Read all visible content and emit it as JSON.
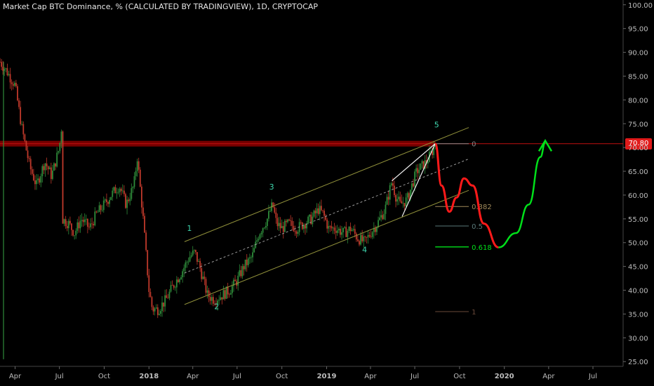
{
  "title": "Market Cap BTC Dominance, % (CALCULATED BY TRADINGVIEW), 1D, CRYPTOCAP",
  "current_value_label": "70.80",
  "colors": {
    "background": "#000000",
    "candle_up": "#2e8b3a",
    "candle_down": "#c0392b",
    "resistance_zone": "#8b0000",
    "channel": "#8f8f3a",
    "projection_down": "#ff1a1a",
    "projection_up": "#00e01a",
    "wave_label": "#3fd9b0",
    "fib_0382": "#a08a5a",
    "fib_05": "#5a7a7a",
    "fib_0618": "#00e01a",
    "fib_1": "#6a4a3a"
  },
  "chart_data": {
    "type": "line",
    "title": "Market Cap BTC Dominance, % (CALCULATED BY TRADINGVIEW), 1D, CRYPTOCAP",
    "xlabel": "",
    "ylabel": "",
    "ylim": [
      24,
      101
    ],
    "x_ticks": [
      "Apr",
      "Jul",
      "Oct",
      "2018",
      "Apr",
      "Jul",
      "Oct",
      "2019",
      "Apr",
      "Jul",
      "Oct",
      "2020",
      "Apr",
      "Jul"
    ],
    "y_ticks": [
      "100.00",
      "95.00",
      "90.00",
      "85.00",
      "80.00",
      "75.00",
      "70.00",
      "65.00",
      "60.00",
      "55.00",
      "50.00",
      "45.00",
      "40.00",
      "35.00",
      "30.00",
      "25.00"
    ],
    "x_range": [
      "2017-03-01",
      "2020-09-01"
    ],
    "series": [
      {
        "values": [
          {
            "x": "2017-03-01",
            "y": 88
          },
          {
            "x": "2017-03-15",
            "y": 86
          },
          {
            "x": "2017-04-01",
            "y": 83
          },
          {
            "x": "2017-04-15",
            "y": 74
          },
          {
            "x": "2017-05-01",
            "y": 66
          },
          {
            "x": "2017-05-15",
            "y": 62
          },
          {
            "x": "2017-06-01",
            "y": 67
          },
          {
            "x": "2017-06-15",
            "y": 64
          },
          {
            "x": "2017-07-01",
            "y": 70
          },
          {
            "x": "2017-07-05",
            "y": 74
          },
          {
            "x": "2017-07-06",
            "y": 55
          },
          {
            "x": "2017-07-20",
            "y": 54
          },
          {
            "x": "2017-08-01",
            "y": 52
          },
          {
            "x": "2017-08-15",
            "y": 55
          },
          {
            "x": "2017-09-01",
            "y": 53
          },
          {
            "x": "2017-09-15",
            "y": 56
          },
          {
            "x": "2017-10-01",
            "y": 58
          },
          {
            "x": "2017-10-15",
            "y": 60
          },
          {
            "x": "2017-11-01",
            "y": 62
          },
          {
            "x": "2017-11-15",
            "y": 58
          },
          {
            "x": "2017-12-01",
            "y": 62
          },
          {
            "x": "2017-12-08",
            "y": 68
          },
          {
            "x": "2017-12-20",
            "y": 55
          },
          {
            "x": "2018-01-01",
            "y": 40
          },
          {
            "x": "2018-01-08",
            "y": 36
          },
          {
            "x": "2018-01-20",
            "y": 36
          },
          {
            "x": "2018-02-05",
            "y": 38
          },
          {
            "x": "2018-02-20",
            "y": 41
          },
          {
            "x": "2018-03-10",
            "y": 44
          },
          {
            "x": "2018-03-25",
            "y": 47
          },
          {
            "x": "2018-04-05",
            "y": 48
          },
          {
            "x": "2018-04-15",
            "y": 45
          },
          {
            "x": "2018-05-01",
            "y": 39
          },
          {
            "x": "2018-05-15",
            "y": 38
          },
          {
            "x": "2018-06-01",
            "y": 39
          },
          {
            "x": "2018-06-15",
            "y": 40
          },
          {
            "x": "2018-07-01",
            "y": 42
          },
          {
            "x": "2018-07-15",
            "y": 45
          },
          {
            "x": "2018-08-01",
            "y": 47
          },
          {
            "x": "2018-08-15",
            "y": 52
          },
          {
            "x": "2018-09-01",
            "y": 55
          },
          {
            "x": "2018-09-12",
            "y": 58
          },
          {
            "x": "2018-09-20",
            "y": 54
          },
          {
            "x": "2018-10-01",
            "y": 53
          },
          {
            "x": "2018-10-15",
            "y": 54
          },
          {
            "x": "2018-11-01",
            "y": 53
          },
          {
            "x": "2018-11-15",
            "y": 54
          },
          {
            "x": "2018-12-01",
            "y": 55
          },
          {
            "x": "2018-12-15",
            "y": 57
          },
          {
            "x": "2018-12-25",
            "y": 56
          },
          {
            "x": "2019-01-05",
            "y": 53
          },
          {
            "x": "2019-01-20",
            "y": 53
          },
          {
            "x": "2019-02-05",
            "y": 52
          },
          {
            "x": "2019-02-20",
            "y": 53
          },
          {
            "x": "2019-03-05",
            "y": 51
          },
          {
            "x": "2019-03-20",
            "y": 50
          },
          {
            "x": "2019-04-01",
            "y": 52
          },
          {
            "x": "2019-04-15",
            "y": 54
          },
          {
            "x": "2019-05-01",
            "y": 57
          },
          {
            "x": "2019-05-15",
            "y": 63
          },
          {
            "x": "2019-05-22",
            "y": 60
          },
          {
            "x": "2019-06-01",
            "y": 58
          },
          {
            "x": "2019-06-15",
            "y": 59
          },
          {
            "x": "2019-06-25",
            "y": 62
          },
          {
            "x": "2019-07-05",
            "y": 65
          },
          {
            "x": "2019-07-15",
            "y": 66
          },
          {
            "x": "2019-07-25",
            "y": 67
          },
          {
            "x": "2019-08-05",
            "y": 69
          },
          {
            "x": "2019-08-12",
            "y": 70.8
          }
        ]
      }
    ],
    "resistance_zone": {
      "from": 70.2,
      "to": 71.4,
      "color": "#8b0000"
    },
    "current_value": 70.8,
    "channel": {
      "lower_start": {
        "x": "2018-03-15",
        "y": 37
      },
      "lower_end": {
        "x": "2019-10-20",
        "y": 61
      },
      "offset": 13.2
    },
    "fib_levels": [
      {
        "label": "0",
        "level": 70.8,
        "color": "#8a8a8a"
      },
      {
        "label": "0.382",
        "level": 57.6,
        "color": "#a08a5a"
      },
      {
        "label": "0.5",
        "level": 53.5,
        "color": "#5a7a7a"
      },
      {
        "label": "0.618",
        "level": 49.1,
        "color": "#00e01a"
      },
      {
        "label": "1",
        "level": 35.5,
        "color": "#6a4a3a"
      }
    ],
    "wave_labels": [
      {
        "label": "1",
        "x": "2018-03-25",
        "y": 52.5
      },
      {
        "label": "2",
        "x": "2018-05-20",
        "y": 36.0
      },
      {
        "label": "3",
        "x": "2018-09-10",
        "y": 61.2
      },
      {
        "label": "4",
        "x": "2019-03-20",
        "y": 48.0
      },
      {
        "label": "5",
        "x": "2019-08-15",
        "y": 74.2
      }
    ],
    "projection_down": [
      {
        "x": "2019-08-12",
        "y": 70.8
      },
      {
        "x": "2019-08-25",
        "y": 62
      },
      {
        "x": "2019-09-10",
        "y": 56.5
      },
      {
        "x": "2019-09-25",
        "y": 59.5
      },
      {
        "x": "2019-10-10",
        "y": 63.5
      },
      {
        "x": "2019-10-28",
        "y": 62
      },
      {
        "x": "2019-11-20",
        "y": 54
      },
      {
        "x": "2019-12-20",
        "y": 49
      }
    ],
    "projection_up": [
      {
        "x": "2019-12-20",
        "y": 49
      },
      {
        "x": "2020-01-25",
        "y": 52
      },
      {
        "x": "2020-02-20",
        "y": 58
      },
      {
        "x": "2020-03-15",
        "y": 68
      },
      {
        "x": "2020-03-25",
        "y": 71
      }
    ],
    "wedge_upper": [
      {
        "x": "2019-05-15",
        "y": 63
      },
      {
        "x": "2019-08-12",
        "y": 70.8
      }
    ],
    "wedge_lower": [
      {
        "x": "2019-06-05",
        "y": 55.5
      },
      {
        "x": "2019-08-12",
        "y": 70.8
      }
    ]
  }
}
